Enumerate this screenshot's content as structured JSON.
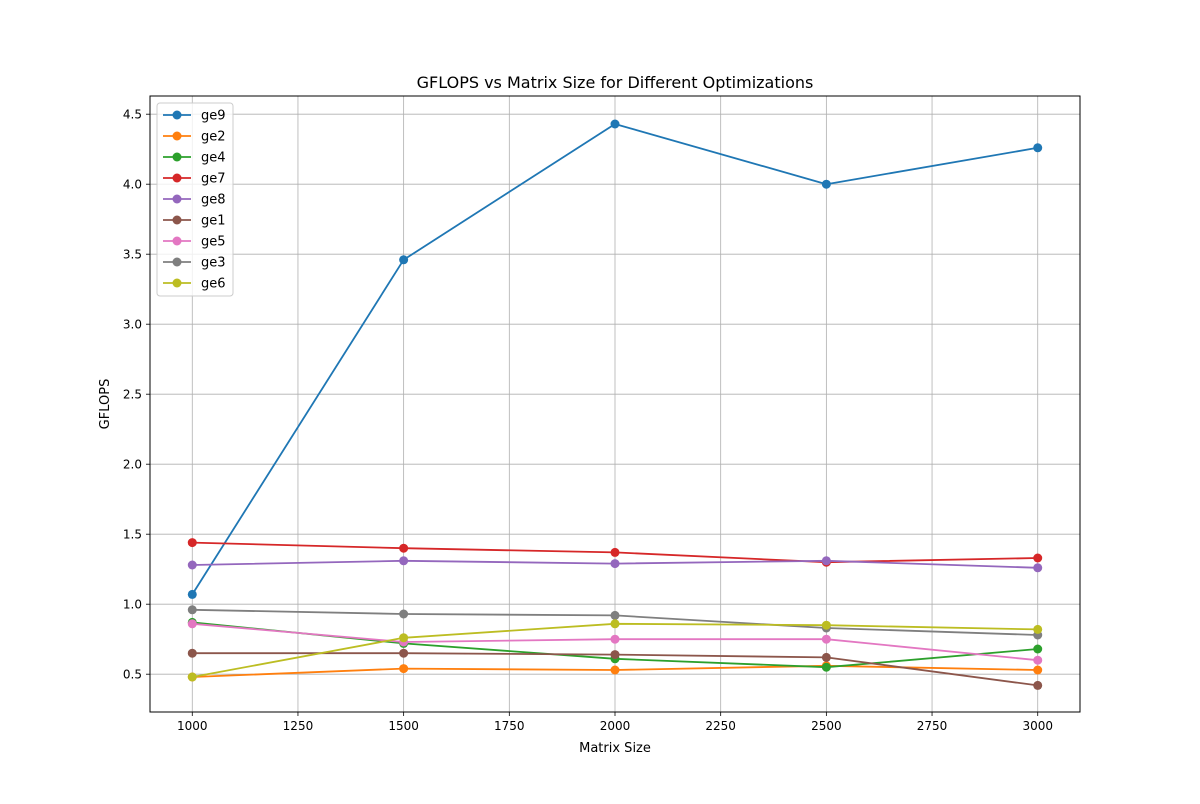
{
  "chart_data": {
    "type": "line",
    "title": "GFLOPS vs Matrix Size for Different Optimizations",
    "xlabel": "Matrix Size",
    "ylabel": "GFLOPS",
    "xlim": [
      900,
      3100
    ],
    "ylim": [
      0.23,
      4.63
    ],
    "x": [
      1000,
      1500,
      2000,
      2500,
      3000
    ],
    "xticks": [
      1000,
      1250,
      1500,
      1750,
      2000,
      2250,
      2500,
      2750,
      3000
    ],
    "xtick_labels": [
      "1000",
      "1250",
      "1500",
      "1750",
      "2000",
      "2250",
      "2500",
      "2750",
      "3000"
    ],
    "yticks": [
      0.5,
      1.0,
      1.5,
      2.0,
      2.5,
      3.0,
      3.5,
      4.0,
      4.5
    ],
    "ytick_labels": [
      "0.5",
      "1.0",
      "1.5",
      "2.0",
      "2.5",
      "3.0",
      "3.5",
      "4.0",
      "4.5"
    ],
    "grid": true,
    "legend_position": "top-left",
    "series": [
      {
        "name": "ge9",
        "color": "#1f77b4",
        "values": [
          1.07,
          3.46,
          4.43,
          4.0,
          4.26
        ]
      },
      {
        "name": "ge2",
        "color": "#ff7f0e",
        "values": [
          0.48,
          0.54,
          0.53,
          0.56,
          0.53
        ]
      },
      {
        "name": "ge4",
        "color": "#2ca02c",
        "values": [
          0.87,
          0.72,
          0.61,
          0.55,
          0.68
        ]
      },
      {
        "name": "ge7",
        "color": "#d62728",
        "values": [
          1.44,
          1.4,
          1.37,
          1.3,
          1.33
        ]
      },
      {
        "name": "ge8",
        "color": "#9467bd",
        "values": [
          1.28,
          1.31,
          1.29,
          1.31,
          1.26
        ]
      },
      {
        "name": "ge1",
        "color": "#8c564b",
        "values": [
          0.65,
          0.65,
          0.64,
          0.62,
          0.42
        ]
      },
      {
        "name": "ge5",
        "color": "#e377c2",
        "values": [
          0.86,
          0.73,
          0.75,
          0.75,
          0.6
        ]
      },
      {
        "name": "ge3",
        "color": "#7f7f7f",
        "values": [
          0.96,
          0.93,
          0.92,
          0.83,
          0.78
        ]
      },
      {
        "name": "ge6",
        "color": "#bcbd22",
        "values": [
          0.48,
          0.76,
          0.86,
          0.85,
          0.82
        ]
      }
    ]
  }
}
